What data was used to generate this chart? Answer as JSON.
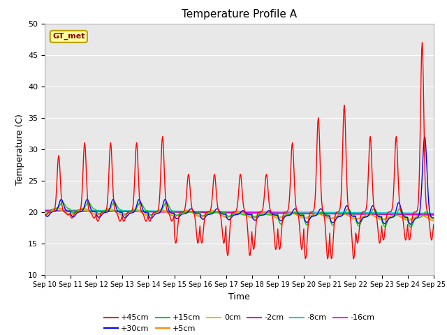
{
  "title": "Temperature Profile A",
  "xlabel": "Time",
  "ylabel": "Temperature (C)",
  "ylim": [
    10,
    50
  ],
  "yticks": [
    10,
    15,
    20,
    25,
    30,
    35,
    40,
    45,
    50
  ],
  "n_days": 15,
  "xtick_labels": [
    "Sep 10",
    "Sep 11",
    "Sep 12",
    "Sep 13",
    "Sep 14",
    "Sep 15",
    "Sep 16",
    "Sep 17",
    "Sep 18",
    "Sep 19",
    "Sep 20",
    "Sep 21",
    "Sep 22",
    "Sep 23",
    "Sep 24",
    "Sep 25"
  ],
  "legend_label_text": "GT_met",
  "series": {
    "+45cm": {
      "color": "#ff0000",
      "lw": 1.0
    },
    "+30cm": {
      "color": "#0000ff",
      "lw": 1.0
    },
    "+15cm": {
      "color": "#00cc00",
      "lw": 1.0
    },
    "+5cm": {
      "color": "#ff8800",
      "lw": 1.0
    },
    "0cm": {
      "color": "#cccc00",
      "lw": 1.0
    },
    "-2cm": {
      "color": "#cc00cc",
      "lw": 1.0
    },
    "-8cm": {
      "color": "#00cccc",
      "lw": 1.0
    },
    "-16cm": {
      "color": "#ff00ff",
      "lw": 1.5
    }
  },
  "bg_color": "#e8e8e8",
  "fig_bg": "#ffffff",
  "day_peaks_45": [
    29,
    31,
    31,
    31,
    32,
    26,
    26,
    26,
    26,
    31,
    35,
    37,
    32,
    32,
    47
  ],
  "day_troughs_45": [
    19.5,
    19,
    18.5,
    18.5,
    18.5,
    15,
    15,
    13,
    14,
    14,
    12.5,
    12.5,
    15,
    15.5,
    15.5
  ],
  "day_peaks_30": [
    22,
    22,
    22,
    22,
    22,
    20.5,
    20.5,
    20.2,
    20.2,
    20.5,
    20.5,
    21,
    21,
    21.5,
    32
  ],
  "day_peaks_15": [
    21.5,
    21.5,
    21.5,
    21.5,
    21.5,
    20,
    20,
    19.5,
    19.5,
    20,
    20,
    20.5,
    20.5,
    20.5,
    20
  ],
  "base_temp": 20.0
}
